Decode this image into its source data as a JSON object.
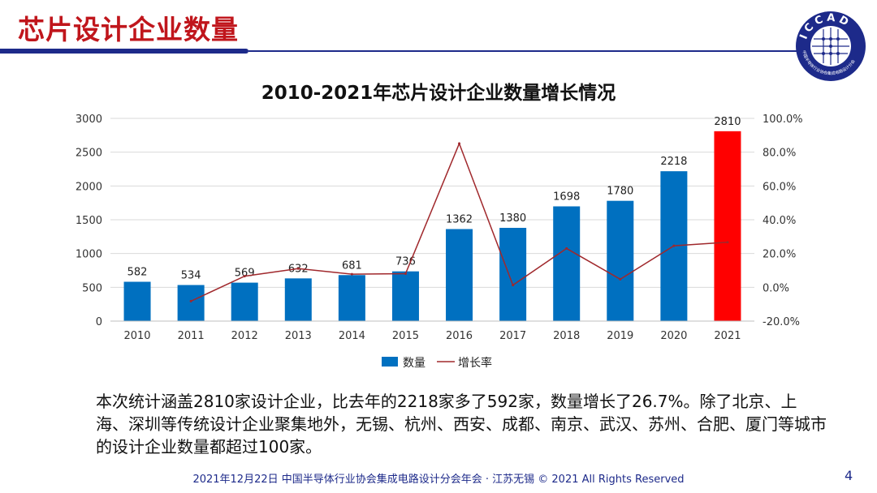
{
  "header": {
    "title": "芯片设计企业数量",
    "logo_text": "ICCAD",
    "logo_subtext": "中国半导体行业协会集成电路设计分会"
  },
  "chart_data": {
    "type": "bar+line",
    "title": "2010-2021年芯片设计企业数量增长情况",
    "categories": [
      "2010",
      "2011",
      "2012",
      "2013",
      "2014",
      "2015",
      "2016",
      "2017",
      "2018",
      "2019",
      "2020",
      "2021"
    ],
    "series": [
      {
        "name": "数量",
        "type": "bar",
        "axis": "left",
        "values": [
          582,
          534,
          569,
          632,
          681,
          736,
          1362,
          1380,
          1698,
          1780,
          2218,
          2810
        ],
        "color": "#0070c0",
        "highlight_color": "#ff0000",
        "highlight_index": 11
      },
      {
        "name": "增长率",
        "type": "line",
        "axis": "right",
        "values": [
          null,
          -8.2,
          6.6,
          11.1,
          7.8,
          8.1,
          85.1,
          1.3,
          23.0,
          4.8,
          24.6,
          26.7
        ],
        "color": "#a0282c"
      }
    ],
    "ylim_left": [
      0,
      3000
    ],
    "yticks_left": [
      "0",
      "500",
      "1000",
      "1500",
      "2000",
      "2500",
      "3000"
    ],
    "ylim_right": [
      -20,
      100
    ],
    "yticks_right": [
      "-20.0%",
      "0.0%",
      "20.0%",
      "40.0%",
      "60.0%",
      "80.0%",
      "100.0%"
    ],
    "grid": true,
    "legend": "bottom"
  },
  "body_text": "本次统计涵盖2810家设计企业，比去年的2218家多了592家，数量增长了26.7%。除了北京、上海、深圳等传统设计企业聚集地外，无锡、杭州、西安、成都、南京、武汉、苏州、合肥、厦门等城市的设计企业数量都超过100家。",
  "footer": {
    "text": "2021年12月22日 中国半导体行业协会集成电路设计分会年会 · 江苏无锡 © 2021 All Rights Reserved",
    "page": "4"
  }
}
